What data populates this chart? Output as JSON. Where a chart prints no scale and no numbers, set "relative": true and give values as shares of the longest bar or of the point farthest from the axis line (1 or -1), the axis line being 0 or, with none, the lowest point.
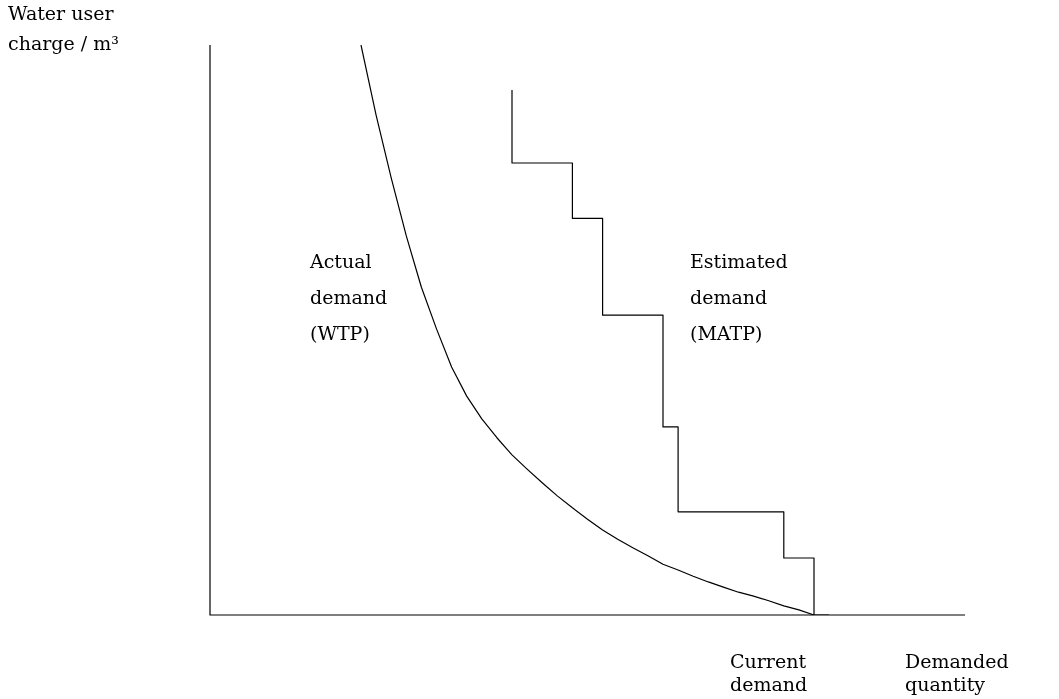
{
  "chart_data": {
    "type": "line",
    "relative": true,
    "xlabel": "Demanded quantity",
    "ylabel": "Water user charge / m³",
    "tick_labels": false,
    "legend": false,
    "marker": "none",
    "line_style": "solid",
    "categories": [
      null,
      null,
      null,
      null,
      null,
      null,
      null,
      null,
      null,
      null,
      null,
      null,
      null,
      null,
      null,
      null,
      null,
      null,
      null,
      null,
      null,
      null,
      null,
      null,
      null,
      null,
      null,
      null,
      null,
      null,
      null,
      null,
      null,
      null,
      null,
      null,
      null,
      null,
      null,
      null,
      null,
      null,
      null,
      null,
      null,
      null,
      null,
      null,
      null,
      null,
      null
    ],
    "series": [
      {
        "name": "Actual demand (WTP)",
        "color": "#000000",
        "values": [
          null,
          null,
          null,
          null,
          null,
          null,
          null,
          null,
          null,
          null,
          1.0,
          0.877,
          0.767,
          0.665,
          0.575,
          0.502,
          0.435,
          0.384,
          0.344,
          0.311,
          0.281,
          0.256,
          0.232,
          0.209,
          0.188,
          0.168,
          0.149,
          0.133,
          0.118,
          0.104,
          0.089,
          0.079,
          0.068,
          0.058,
          0.049,
          0.04,
          0.033,
          0.025,
          0.016,
          0.009,
          0,
          null,
          null,
          null,
          null,
          null,
          null,
          null,
          null,
          null,
          null
        ]
      },
      {
        "name": "Estimated demand (MATP)",
        "type": "step",
        "color": "#000000",
        "values": [
          null,
          null,
          null,
          null,
          null,
          null,
          null,
          null,
          null,
          null,
          null,
          null,
          null,
          null,
          null,
          null,
          null,
          null,
          null,
          null,
          0.921,
          0.793,
          0.793,
          0.793,
          0.793,
          0.696,
          0.696,
          0.526,
          0.526,
          0.526,
          0.526,
          0.33,
          0.181,
          0.181,
          0.181,
          0.181,
          0.181,
          0.181,
          0.181,
          0.1,
          0.1,
          0,
          null,
          null,
          null,
          null,
          null,
          null,
          null,
          null,
          null
        ]
      }
    ],
    "annotations": [
      "Current demand"
    ]
  }
}
